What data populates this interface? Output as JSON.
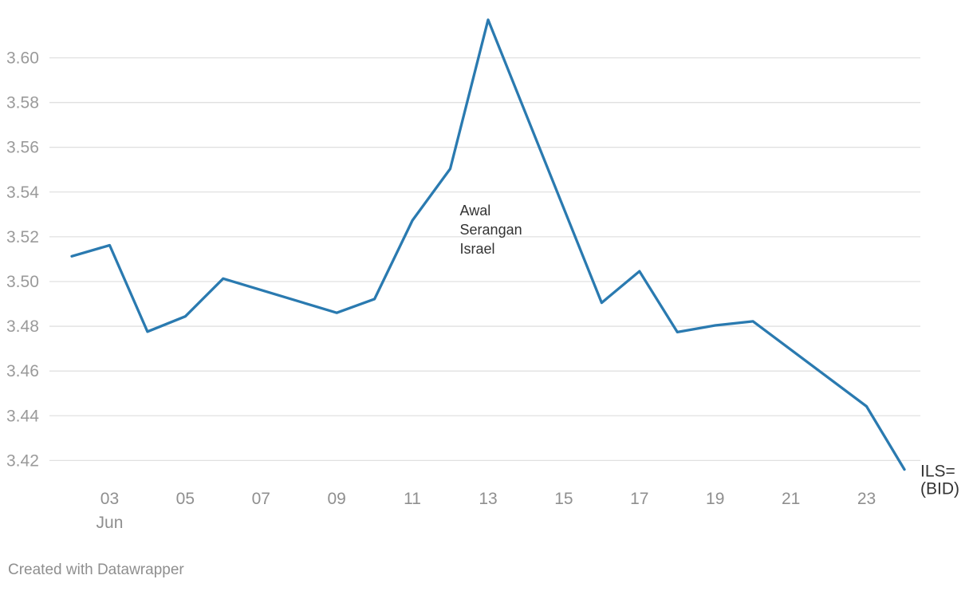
{
  "chart_data": {
    "type": "line",
    "title": "",
    "xlabel": "",
    "ylabel": "",
    "x": [
      "2025-06-02",
      "2025-06-03",
      "2025-06-04",
      "2025-06-05",
      "2025-06-06",
      "2025-06-09",
      "2025-06-10",
      "2025-06-11",
      "2025-06-12",
      "2025-06-13",
      "2025-06-16",
      "2025-06-17",
      "2025-06-18",
      "2025-06-19",
      "2025-06-20",
      "2025-06-23",
      "2025-06-24"
    ],
    "series": [
      {
        "name": "ILS=\n(BID)",
        "color": "#2a7ab0",
        "values": [
          3.5113,
          3.5162,
          3.4776,
          3.4844,
          3.5013,
          3.486,
          3.4922,
          3.5273,
          3.5504,
          3.617,
          3.4905,
          3.5046,
          3.4774,
          3.4804,
          3.4822,
          3.4442,
          3.416
        ]
      }
    ],
    "xlim": [
      "2025-06-02",
      "2025-06-24"
    ],
    "ylim": [
      3.413,
      3.618
    ],
    "y_ticks": [
      "3.42",
      "3.44",
      "3.46",
      "3.48",
      "3.50",
      "3.52",
      "3.54",
      "3.56",
      "3.58",
      "3.60"
    ],
    "x_ticks": [
      {
        "date": "2025-06-03",
        "label": "03",
        "sublabel": "Jun"
      },
      {
        "date": "2025-06-05",
        "label": "05"
      },
      {
        "date": "2025-06-07",
        "label": "07"
      },
      {
        "date": "2025-06-09",
        "label": "09"
      },
      {
        "date": "2025-06-11",
        "label": "11"
      },
      {
        "date": "2025-06-13",
        "label": "13"
      },
      {
        "date": "2025-06-15",
        "label": "15"
      },
      {
        "date": "2025-06-17",
        "label": "17"
      },
      {
        "date": "2025-06-19",
        "label": "19"
      },
      {
        "date": "2025-06-21",
        "label": "21"
      },
      {
        "date": "2025-06-23",
        "label": "23"
      }
    ],
    "annotations": [
      {
        "x": "2025-06-12",
        "y": 3.5295,
        "lines": [
          "Awal",
          "Serangan",
          "Israel"
        ]
      }
    ],
    "grid": true,
    "legend": "none",
    "series_label_placement": "line-end"
  },
  "footer": {
    "credit": "Created with Datawrapper"
  }
}
